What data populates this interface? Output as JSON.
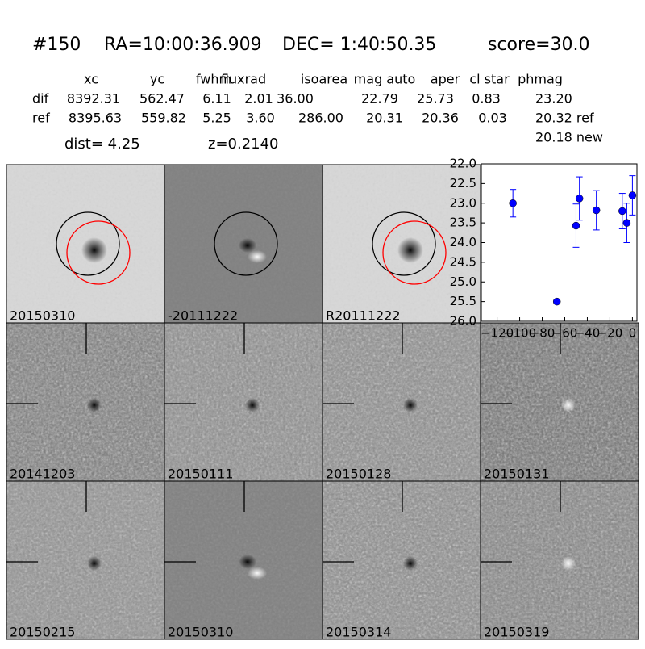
{
  "header": {
    "object": "#150",
    "ra": "RA=10:00:36.909",
    "dec": "DEC= 1:40:50.35",
    "score": "score=30.0"
  },
  "table": {
    "columns": [
      "xc",
      "yc",
      "fwhm",
      "fluxrad",
      "isoarea",
      "mag auto",
      "aper",
      "cl star",
      "phmag"
    ],
    "rows": [
      [
        "dif",
        "8392.31",
        "562.47",
        "6.11",
        "2.01",
        "36.00",
        "22.79",
        "25.73",
        "0.83",
        "23.20"
      ],
      [
        "ref",
        "8395.63",
        "559.82",
        "5.25",
        "3.60",
        "286.00",
        "20.31",
        "20.36",
        "0.03",
        "20.32 ref"
      ]
    ],
    "extra": "20.18 new"
  },
  "dist": "dist=  4.25",
  "z": "z=0.2140",
  "panels": [
    {
      "label": "20150310"
    },
    {
      "label": "-20111222"
    },
    {
      "label": "R20111222"
    },
    {
      "label": "20141203"
    },
    {
      "label": "20150111"
    },
    {
      "label": "20150128"
    },
    {
      "label": "20150131"
    },
    {
      "label": "20150215"
    },
    {
      "label": "20150310",
      "color": "#ff0000"
    },
    {
      "label": "20150314"
    },
    {
      "label": "20150319"
    }
  ],
  "chart_data": {
    "type": "scatter",
    "color": "#0000ff",
    "x": [
      -106,
      -67,
      -50,
      -47,
      -32,
      -9,
      -5,
      0
    ],
    "values": [
      23.0,
      25.5,
      23.57,
      22.88,
      23.18,
      23.2,
      23.5,
      22.8
    ],
    "errors": [
      0.35,
      0.05,
      0.55,
      0.55,
      0.5,
      0.45,
      0.5,
      0.5
    ],
    "xlim": [
      -134,
      4
    ],
    "ylim": [
      26.0,
      22.0
    ],
    "xticks": [
      {
        "value": -120,
        "label": "−120"
      },
      {
        "value": -100,
        "label": "−100"
      },
      {
        "value": -80,
        "label": "−80"
      },
      {
        "value": -60,
        "label": "−60"
      },
      {
        "value": -40,
        "label": "−40"
      },
      {
        "value": -20,
        "label": "−20"
      },
      0
    ],
    "yticks": [
      {
        "value": 22,
        "label": "22.0"
      },
      22.5,
      {
        "value": 23,
        "label": "23.0"
      },
      23.5,
      {
        "value": 24,
        "label": "24.0"
      },
      24.5,
      {
        "value": 25,
        "label": "25.0"
      },
      25.5,
      {
        "value": 26,
        "label": "26.0"
      }
    ]
  }
}
